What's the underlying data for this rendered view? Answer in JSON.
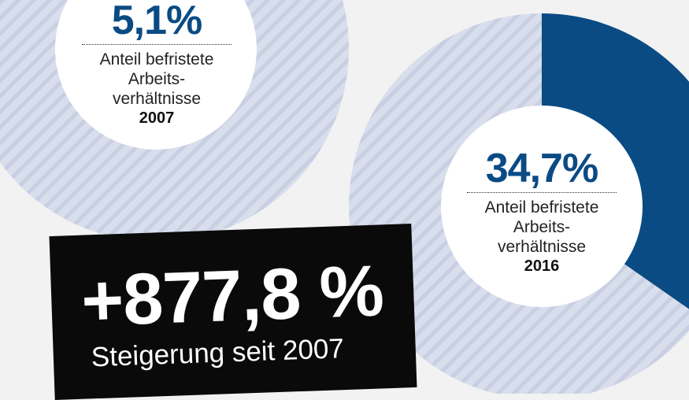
{
  "chart_data": [
    {
      "type": "pie",
      "year_label": "2007",
      "value_label": "5,1%",
      "description_lines": [
        "Anteil befristete",
        "Arbeits-",
        "verhältnisse"
      ],
      "slices": [
        {
          "value": 5.1
        },
        {
          "value": 94.9
        }
      ]
    },
    {
      "type": "pie",
      "year_label": "2016",
      "value_label": "34,7%",
      "description_lines": [
        "Anteil befristete",
        "Arbeits-",
        "verhältnisse"
      ],
      "slices": [
        {
          "value": 34.7
        },
        {
          "value": 65.3
        }
      ]
    }
  ],
  "callout": {
    "big": "+877,8 %",
    "sub": "Steigerung seit 2007"
  },
  "colors": {
    "accent_2007": "#8f1a85",
    "accent_2016": "#0a4b84",
    "stripe_light": "#d9deec",
    "stripe_mid": "#c8cfe3",
    "photo_dark": "#171717",
    "photo_pink": "#d98cd4",
    "background": "#f2f2f2"
  }
}
